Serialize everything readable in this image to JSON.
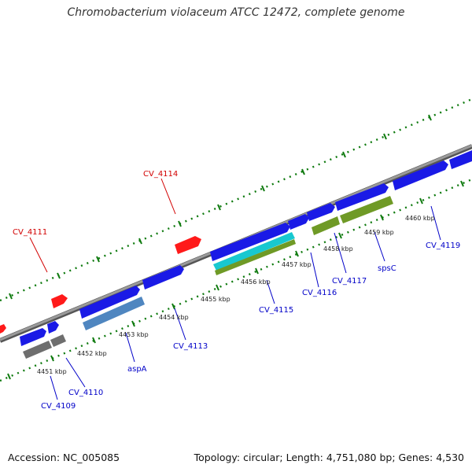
{
  "title": "Chromobacterium violaceum ATCC 12472, complete genome",
  "footer": {
    "accession": "Accession: NC_005085",
    "topology": "Topology: circular; Length: 4,751,080 bp; Genes: 4,530"
  },
  "colors": {
    "backbone": "#8a8a8a",
    "forward_gene": "#1a1ae6",
    "reverse_gene": "#ff1a1a",
    "grey_feature": "#6e6e6e",
    "steel_feature": "#4f86c0",
    "cyan_feature": "#18c8d0",
    "olive_feature": "#6f9a26",
    "tick_green": "#0e7a0e",
    "label_blue": "#0000c8",
    "label_red": "#d20000"
  },
  "scale": {
    "kbp_labels": [
      "4451 kbp",
      "4452 kbp",
      "4453 kbp",
      "4454 kbp",
      "4455 kbp",
      "4456 kbp",
      "4457 kbp",
      "4458 kbp",
      "4459 kbp",
      "4460 kbp"
    ]
  },
  "gene_labels": {
    "cv_4114": "CV_4114",
    "cv_4111": "CV_4111",
    "cv_4109": "CV_4109",
    "cv_4110": "CV_4110",
    "aspa": "aspA",
    "cv_4113": "CV_4113",
    "cv_4115": "CV_4115",
    "cv_4116": "CV_4116",
    "cv_4117": "CV_4117",
    "spsc": "spsC",
    "cv_4119": "CV_4119"
  }
}
